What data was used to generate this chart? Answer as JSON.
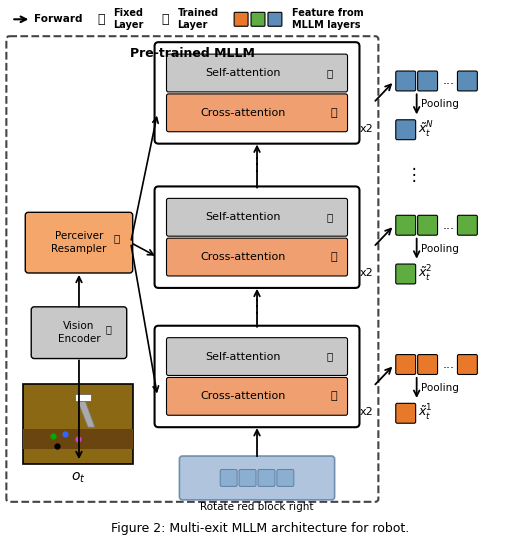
{
  "title": "Figure 2: Multi-exit MLLM architecture for robot.",
  "colors": {
    "orange": "#E8792A",
    "green": "#5FAD41",
    "blue": "#5B8DB8",
    "self_attn_bg": "#C8C8C8",
    "cross_attn_bg": "#F0A070",
    "perceiver_bg": "#F5A66A",
    "vision_encoder_bg": "#C8C8C8",
    "text_token_bg": "#B0C4DE",
    "text_token_sq": "#8BAFD0",
    "dashed_box_color": "#444444",
    "arrow_color": "#000000",
    "white": "#FFFFFF"
  },
  "pretrained_label": "Pre-trained MLLM",
  "text_token": "Rotate red block right",
  "vision_encoder_label": "Vision\nEncoder",
  "perceiver_label": "Perceiver\nResampler",
  "obs_label": "$o_t$",
  "block_configs": [
    {
      "out_color": "#5B8DB8",
      "feat_label": "$\\tilde{x}_t^N$"
    },
    {
      "out_color": "#5FAD41",
      "feat_label": "$\\tilde{x}_t^2$"
    },
    {
      "out_color": "#E8792A",
      "feat_label": "$\\tilde{x}_t^1$"
    }
  ]
}
